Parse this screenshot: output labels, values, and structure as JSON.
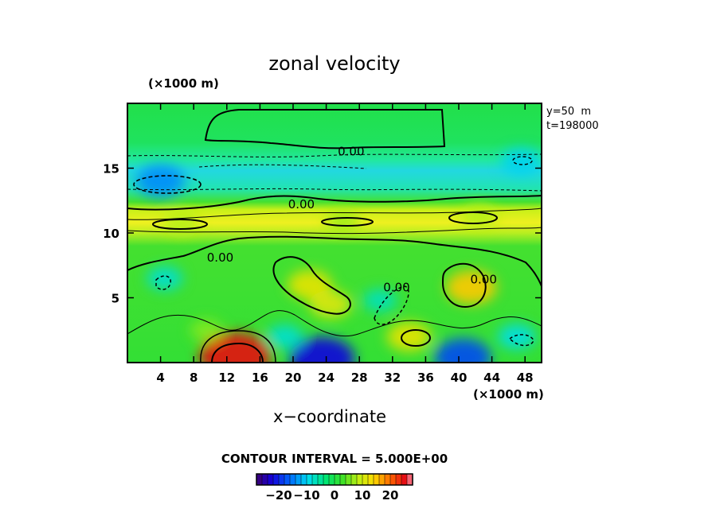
{
  "chart_data": {
    "type": "heatmap",
    "title": "zonal velocity",
    "xlabel": "x−coordinate",
    "x_unit": "(×1000 m)",
    "y_unit": "(×1000 m)",
    "xlim": [
      0,
      50
    ],
    "ylim": [
      0,
      20
    ],
    "xticks": [
      4,
      8,
      12,
      16,
      20,
      24,
      28,
      32,
      36,
      40,
      44,
      48
    ],
    "xtick_labels": [
      "4",
      "8",
      "12",
      "16",
      "20",
      "24",
      "28",
      "32",
      "36",
      "40",
      "44",
      "48"
    ],
    "yticks": [
      5,
      10,
      15
    ],
    "ytick_labels": [
      "5",
      "10",
      "15"
    ],
    "annotations": [
      "y=50  m",
      "t=198000"
    ],
    "contour_labels": [
      {
        "text": "0.00",
        "x": 27,
        "y": 16.3
      },
      {
        "text": "0.00",
        "x": 21,
        "y": 12.2
      },
      {
        "text": "0.00",
        "x": 11.2,
        "y": 8.1
      },
      {
        "text": "0.00",
        "x": 32.5,
        "y": 5.8
      },
      {
        "text": "0.00",
        "x": 43.0,
        "y": 6.4
      }
    ],
    "contour_interval_text": "CONTOUR INTERVAL = 5.000E+00",
    "colorbar": {
      "range": [
        -28,
        28
      ],
      "ticks": [
        -20,
        -10,
        0,
        10,
        20
      ],
      "tick_labels": [
        "−20",
        "−10",
        "0",
        "10",
        "20"
      ]
    },
    "features": [
      {
        "x": 13.0,
        "y": 0.5,
        "value": 25
      },
      {
        "x": 23.5,
        "y": 0.3,
        "value": -22
      },
      {
        "x": 40.5,
        "y": 0.4,
        "value": -18
      },
      {
        "x": 41.5,
        "y": 5.8,
        "value": 15
      },
      {
        "x": 22.0,
        "y": 6.0,
        "value": 12
      },
      {
        "x": 24.5,
        "y": 4.5,
        "value": 11
      },
      {
        "x": 34.0,
        "y": 2.0,
        "value": 12
      },
      {
        "x": 4.0,
        "y": 14.0,
        "value": -14
      },
      {
        "x": 47.5,
        "y": 15.5,
        "value": -10
      },
      {
        "x": 6.5,
        "y": 10.8,
        "value": 8
      },
      {
        "x": 42.5,
        "y": 11.3,
        "value": 8
      },
      {
        "x": 26.0,
        "y": 10.9,
        "value": 7
      },
      {
        "x": 4.5,
        "y": 6.5,
        "value": -8
      },
      {
        "x": 30.5,
        "y": 4.8,
        "value": -7
      },
      {
        "x": 47.0,
        "y": 2.0,
        "value": -9
      },
      {
        "x": 19.0,
        "y": 2.0,
        "value": -8
      },
      {
        "x": 9.5,
        "y": 2.5,
        "value": 6
      }
    ]
  }
}
